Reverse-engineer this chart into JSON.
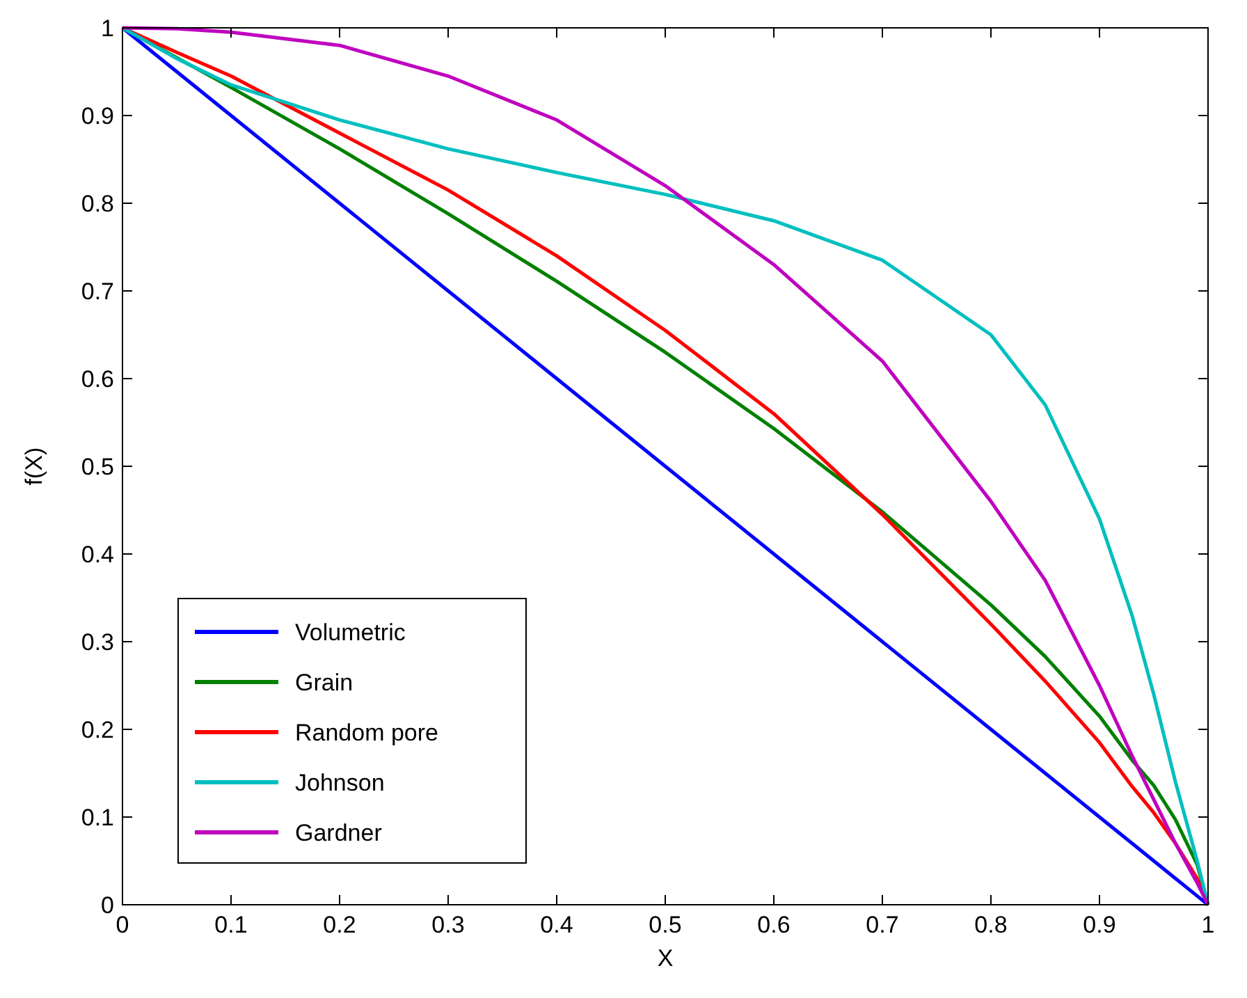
{
  "chart_data": {
    "type": "line",
    "xlabel": "X",
    "ylabel": "f(X)",
    "xlim": [
      0,
      1
    ],
    "ylim": [
      0,
      1
    ],
    "xticks": [
      0,
      0.1,
      0.2,
      0.3,
      0.4,
      0.5,
      0.6,
      0.7,
      0.8,
      0.9,
      1
    ],
    "yticks": [
      0,
      0.1,
      0.2,
      0.3,
      0.4,
      0.5,
      0.6,
      0.7,
      0.8,
      0.9,
      1
    ],
    "grid": false,
    "legend": "bottom left",
    "marker": "none",
    "line_style": "solid",
    "x": [
      0,
      0.05,
      0.1,
      0.2,
      0.3,
      0.4,
      0.5,
      0.6,
      0.7,
      0.8,
      0.85,
      0.9,
      0.93,
      0.95,
      0.97,
      0.99,
      1
    ],
    "series": [
      {
        "name": "Volumetric",
        "color": "#0000ff",
        "values": [
          1,
          0.95,
          0.9,
          0.8,
          0.7,
          0.6,
          0.5,
          0.4,
          0.3,
          0.2,
          0.15,
          0.1,
          0.07,
          0.05,
          0.03,
          0.01,
          0
        ]
      },
      {
        "name": "Grain",
        "color": "#008000",
        "values": [
          1,
          0.966,
          0.932,
          0.862,
          0.788,
          0.711,
          0.63,
          0.543,
          0.448,
          0.342,
          0.283,
          0.215,
          0.165,
          0.136,
          0.097,
          0.046,
          0
        ]
      },
      {
        "name": "Random pore",
        "color": "#ff0000",
        "values": [
          1,
          0.972,
          0.945,
          0.88,
          0.815,
          0.74,
          0.655,
          0.56,
          0.445,
          0.32,
          0.255,
          0.185,
          0.135,
          0.105,
          0.07,
          0.03,
          0
        ]
      },
      {
        "name": "Johnson",
        "color": "#00bfbf",
        "values": [
          1,
          0.965,
          0.935,
          0.895,
          0.862,
          0.835,
          0.81,
          0.78,
          0.735,
          0.65,
          0.57,
          0.44,
          0.33,
          0.24,
          0.14,
          0.05,
          0
        ]
      },
      {
        "name": "Gardner",
        "color": "#bf00bf",
        "values": [
          1,
          0.999,
          0.995,
          0.98,
          0.945,
          0.895,
          0.82,
          0.73,
          0.62,
          0.46,
          0.37,
          0.25,
          0.17,
          0.12,
          0.07,
          0.025,
          0
        ]
      }
    ]
  }
}
